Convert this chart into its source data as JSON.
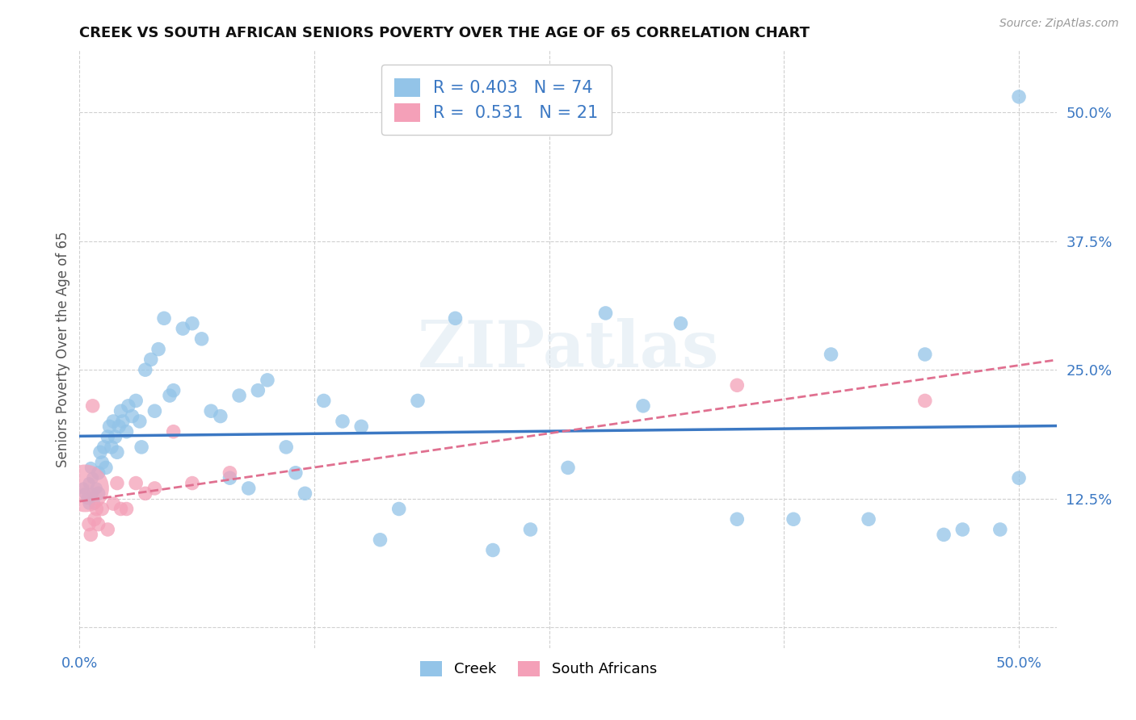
{
  "title": "CREEK VS SOUTH AFRICAN SENIORS POVERTY OVER THE AGE OF 65 CORRELATION CHART",
  "source": "Source: ZipAtlas.com",
  "ylabel": "Seniors Poverty Over the Age of 65",
  "xlim": [
    0.0,
    0.52
  ],
  "ylim": [
    -0.02,
    0.56
  ],
  "ytick_values_right": [
    0.125,
    0.25,
    0.375,
    0.5
  ],
  "grid_color": "#d0d0d0",
  "background_color": "#ffffff",
  "creek_color": "#93c4e8",
  "creek_line_color": "#3b78c3",
  "sa_color": "#f4a0b8",
  "sa_line_color": "#e07090",
  "legend_creek_label": "Creek",
  "legend_sa_label": "South Africans",
  "creek_R": 0.403,
  "creek_N": 74,
  "sa_R": 0.531,
  "sa_N": 21,
  "creek_x": [
    0.002,
    0.003,
    0.004,
    0.005,
    0.005,
    0.006,
    0.007,
    0.007,
    0.008,
    0.009,
    0.01,
    0.01,
    0.011,
    0.012,
    0.013,
    0.014,
    0.015,
    0.016,
    0.017,
    0.018,
    0.019,
    0.02,
    0.021,
    0.022,
    0.023,
    0.025,
    0.026,
    0.028,
    0.03,
    0.032,
    0.033,
    0.035,
    0.038,
    0.04,
    0.042,
    0.045,
    0.048,
    0.05,
    0.055,
    0.06,
    0.065,
    0.07,
    0.075,
    0.08,
    0.085,
    0.09,
    0.095,
    0.1,
    0.11,
    0.115,
    0.12,
    0.13,
    0.14,
    0.15,
    0.16,
    0.17,
    0.18,
    0.2,
    0.22,
    0.24,
    0.26,
    0.28,
    0.3,
    0.32,
    0.35,
    0.38,
    0.4,
    0.42,
    0.45,
    0.46,
    0.47,
    0.49,
    0.5,
    0.5
  ],
  "creek_y": [
    0.135,
    0.13,
    0.125,
    0.14,
    0.12,
    0.155,
    0.13,
    0.145,
    0.12,
    0.135,
    0.13,
    0.15,
    0.17,
    0.16,
    0.175,
    0.155,
    0.185,
    0.195,
    0.175,
    0.2,
    0.185,
    0.17,
    0.195,
    0.21,
    0.2,
    0.19,
    0.215,
    0.205,
    0.22,
    0.2,
    0.175,
    0.25,
    0.26,
    0.21,
    0.27,
    0.3,
    0.225,
    0.23,
    0.29,
    0.295,
    0.28,
    0.21,
    0.205,
    0.145,
    0.225,
    0.135,
    0.23,
    0.24,
    0.175,
    0.15,
    0.13,
    0.22,
    0.2,
    0.195,
    0.085,
    0.115,
    0.22,
    0.3,
    0.075,
    0.095,
    0.155,
    0.305,
    0.215,
    0.295,
    0.105,
    0.105,
    0.265,
    0.105,
    0.265,
    0.09,
    0.095,
    0.095,
    0.515,
    0.145
  ],
  "sa_x": [
    0.003,
    0.005,
    0.006,
    0.007,
    0.008,
    0.009,
    0.01,
    0.012,
    0.015,
    0.018,
    0.02,
    0.022,
    0.025,
    0.03,
    0.035,
    0.04,
    0.05,
    0.06,
    0.08,
    0.35,
    0.45
  ],
  "sa_y": [
    0.135,
    0.1,
    0.09,
    0.215,
    0.105,
    0.115,
    0.1,
    0.115,
    0.095,
    0.12,
    0.14,
    0.115,
    0.115,
    0.14,
    0.13,
    0.135,
    0.19,
    0.14,
    0.15,
    0.235,
    0.22
  ],
  "sa_big_idx": 0,
  "sa_big_size": 1800
}
